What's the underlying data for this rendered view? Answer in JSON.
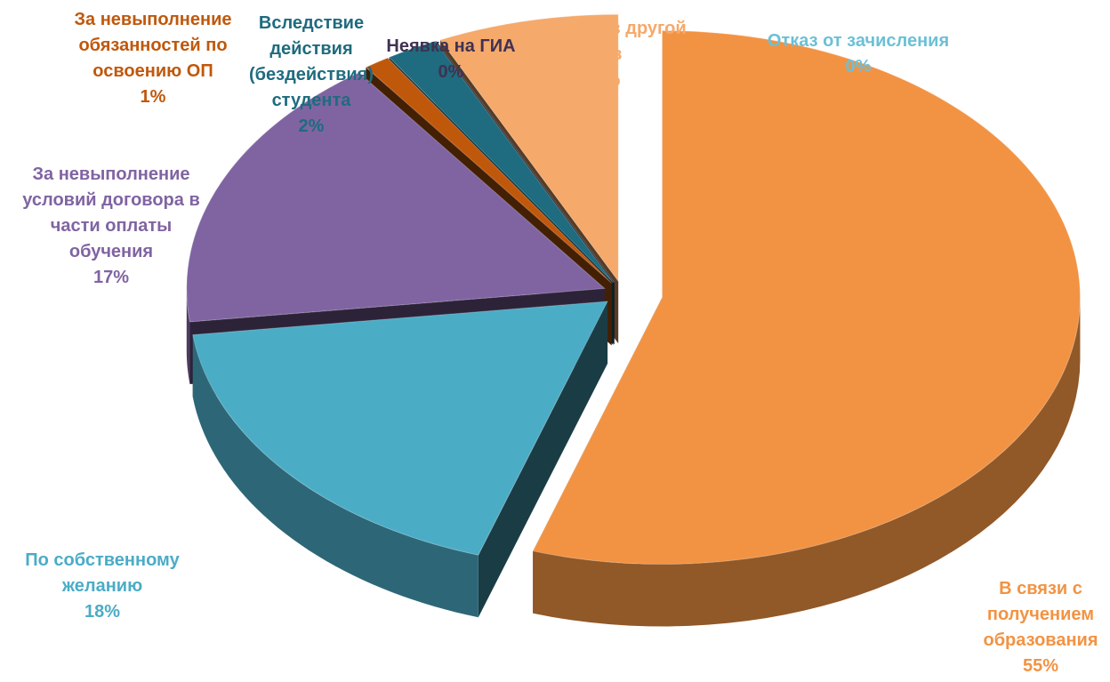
{
  "chart_data": {
    "type": "pie",
    "categories": [
      "Отказ от зачисления",
      "В связи с\nполучением\nобразования",
      "По собственному\nжеланию",
      "За невыполнение\nусловий договора в\nчасти оплаты\nобучения",
      "За невыполнение\nобязанностей по\nосвоению ОП",
      "Вследствие\nдействия\n(бездействия)\nстудента",
      "Неявка на ГИА",
      "Перевод в другой\nвуз"
    ],
    "values": [
      0,
      55,
      18,
      17,
      1,
      2,
      0,
      7
    ],
    "value_labels": [
      "0%",
      "55%",
      "18%",
      "17%",
      "1%",
      "2%",
      "0%",
      "7%"
    ],
    "colors": [
      "#4bacc6",
      "#f29343",
      "#4bacc6",
      "#8064a2",
      "#c0580c",
      "#1f6b7f",
      "#403152",
      "#f5a96b"
    ]
  }
}
